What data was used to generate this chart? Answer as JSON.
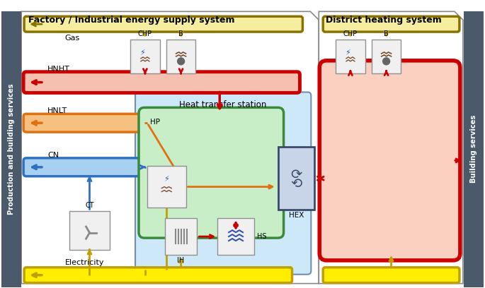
{
  "fig_width": 6.85,
  "fig_height": 4.08,
  "dpi": 100,
  "bg_color": "#ffffff",
  "colors": {
    "sidebar_bg": "#4a5a6b",
    "panel_border": "#888888",
    "gas_fill": "#f5eea0",
    "gas_border": "#8b7200",
    "hnht_fill": "#f5c0b0",
    "hnht_border": "#cc0000",
    "hnlt_fill": "#f5c080",
    "hnlt_border": "#e07010",
    "cn_fill": "#a8d0f0",
    "cn_border": "#3070c0",
    "elec_fill": "#ffee00",
    "elec_border": "#c0a000",
    "hts_fill": "#cde8f8",
    "hts_border": "#7090b0",
    "hp_fill": "#c8eec8",
    "hp_border": "#3a8a3a",
    "district_fill": "#fcd0c0",
    "district_border": "#cc0000",
    "hex_fill": "#c8d4e8",
    "hex_border": "#3a4a6a",
    "comp_fill": "#f0f0f0",
    "comp_border": "#909090",
    "red": "#cc0000",
    "orange": "#e07010",
    "blue": "#3070c0",
    "yellow": "#c0a000",
    "white": "#ffffff",
    "black": "#000000"
  },
  "texts": {
    "left_title": "Factory / Industrial energy supply system",
    "right_title": "District heating system",
    "left_sidebar": "Production and building services",
    "right_sidebar": "Building services",
    "gas": "Gas",
    "hnht": "HNHT",
    "hnlt": "HNLT",
    "cn": "CN",
    "electricity": "Electricity",
    "ct": "CT",
    "chp": "CHP",
    "b": "B",
    "hts": "Heat transfer station",
    "hp": "HP",
    "hex": "HEX",
    "ih": "IH",
    "hs": "HS"
  }
}
